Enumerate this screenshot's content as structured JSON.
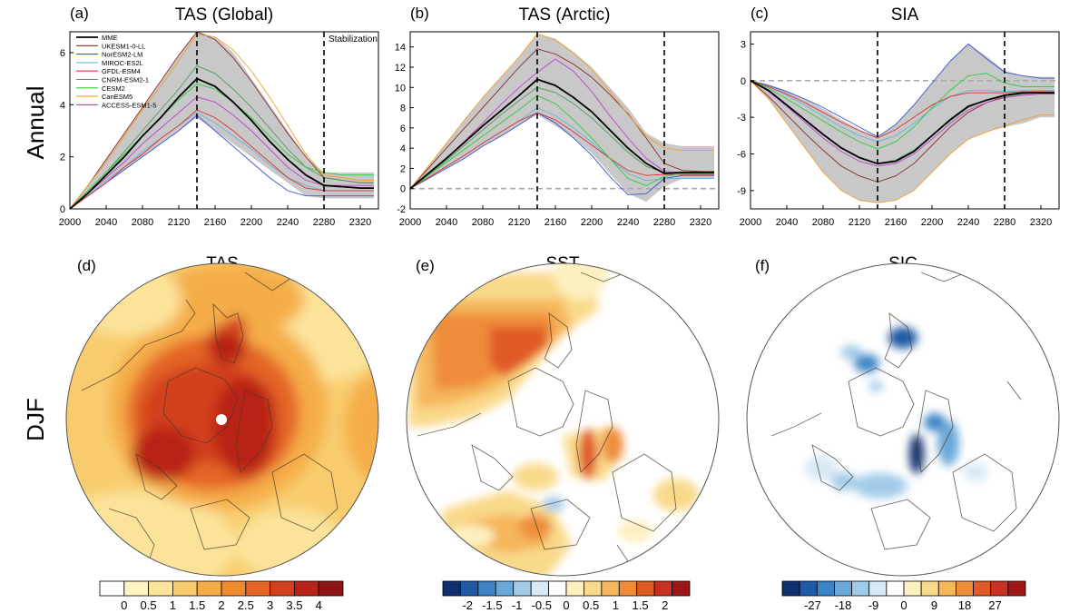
{
  "row_labels": {
    "annual": "Annual",
    "djf": "DJF"
  },
  "colors": {
    "envelope": "#c8c8c8",
    "MME": "#000000",
    "UKESM1-0-LL": "#8b2a2a",
    "NorESM2-LM": "#3a55d4",
    "MIROC-ES2L": "#6ab2d9",
    "GFDL-ESM4": "#e03030",
    "CNRM-ESM2-1": "#4a9e5a",
    "CESM2": "#2ecc3a",
    "CanESM5": "#f0a030",
    "ACCESS-ESM1-5": "#c040d0"
  },
  "chart_data": [
    {
      "type": "line",
      "tag": "(a)",
      "title": "TAS (Global)",
      "xlim": [
        2000,
        2340
      ],
      "ylim": [
        0,
        6.8
      ],
      "xticks": [
        2000,
        2040,
        2080,
        2120,
        2160,
        2200,
        2240,
        2280,
        2320
      ],
      "yticks": [
        0,
        2,
        4,
        6
      ],
      "vlines": [
        2140,
        2280
      ],
      "hline": null,
      "annotation": "Stabilization",
      "legend": [
        "MME",
        "UKESM1-0-LL",
        "NorESM2-LM",
        "MIROC-ES2L",
        "GFDL-ESM4",
        "CNRM-ESM2-1",
        "CESM2",
        "CanESM5",
        "ACCESS-ESM1-5"
      ],
      "x": [
        2000,
        2020,
        2040,
        2060,
        2080,
        2100,
        2120,
        2140,
        2160,
        2180,
        2200,
        2220,
        2240,
        2260,
        2280,
        2300,
        2320,
        2335
      ],
      "envelope_low": [
        0,
        0.5,
        1.0,
        1.5,
        2.0,
        2.5,
        3.0,
        3.5,
        3.0,
        2.5,
        2.0,
        1.5,
        1.0,
        0.5,
        0.4,
        0.4,
        0.4,
        0.4
      ],
      "envelope_high": [
        0,
        0.9,
        1.9,
        2.9,
        3.9,
        4.9,
        5.9,
        6.8,
        6.6,
        6.0,
        5.0,
        4.0,
        3.0,
        2.0,
        1.4,
        1.4,
        1.4,
        1.4
      ],
      "series": [
        {
          "name": "MME",
          "values": [
            0,
            0.6,
            1.3,
            2.0,
            2.8,
            3.5,
            4.3,
            5.0,
            4.7,
            4.1,
            3.4,
            2.6,
            1.9,
            1.3,
            0.9,
            0.85,
            0.8,
            0.8
          ]
        },
        {
          "name": "UKESM1-0-LL",
          "values": [
            0,
            0.9,
            1.9,
            2.9,
            3.9,
            4.9,
            5.9,
            6.8,
            6.5,
            5.8,
            4.9,
            3.9,
            2.9,
            2.0,
            1.2,
            1.1,
            1.0,
            1.0
          ]
        },
        {
          "name": "NorESM2-LM",
          "values": [
            0,
            0.5,
            1.0,
            1.5,
            2.0,
            2.5,
            3.0,
            3.6,
            3.0,
            2.4,
            1.8,
            1.2,
            0.7,
            0.5,
            0.5,
            0.5,
            0.5,
            0.5
          ]
        },
        {
          "name": "MIROC-ES2L",
          "values": [
            0,
            0.5,
            1.1,
            1.6,
            2.2,
            2.7,
            3.2,
            3.7,
            3.3,
            2.8,
            2.3,
            1.7,
            1.2,
            0.9,
            0.7,
            0.7,
            0.7,
            0.7
          ]
        },
        {
          "name": "GFDL-ESM4",
          "values": [
            0,
            0.5,
            1.0,
            1.6,
            2.1,
            2.7,
            3.2,
            3.8,
            3.5,
            3.0,
            2.4,
            1.8,
            1.2,
            0.8,
            0.7,
            0.7,
            0.7,
            0.7
          ]
        },
        {
          "name": "CNRM-ESM2-1",
          "values": [
            0,
            0.7,
            1.4,
            2.2,
            3.0,
            3.8,
            4.6,
            5.5,
            5.2,
            4.6,
            3.9,
            3.1,
            2.3,
            1.6,
            1.2,
            1.1,
            1.0,
            1.0
          ]
        },
        {
          "name": "CESM2",
          "values": [
            0,
            0.7,
            1.4,
            2.1,
            2.8,
            3.5,
            4.2,
            4.8,
            4.6,
            4.1,
            3.5,
            2.8,
            2.1,
            1.6,
            1.4,
            1.3,
            1.3,
            1.3
          ]
        },
        {
          "name": "CanESM5",
          "values": [
            0,
            0.9,
            1.8,
            2.8,
            3.8,
            4.7,
            5.7,
            6.7,
            6.6,
            6.1,
            5.3,
            4.3,
            3.2,
            2.1,
            1.3,
            1.2,
            1.1,
            1.1
          ]
        },
        {
          "name": "ACCESS-ESM1-5",
          "values": [
            0,
            0.6,
            1.2,
            1.8,
            2.5,
            3.1,
            3.7,
            4.3,
            4.1,
            3.6,
            3.0,
            2.3,
            1.6,
            1.1,
            0.9,
            0.9,
            0.9,
            0.9
          ]
        }
      ]
    },
    {
      "type": "line",
      "tag": "(b)",
      "title": "TAS (Arctic)",
      "xlim": [
        2000,
        2340
      ],
      "ylim": [
        -2,
        15.5
      ],
      "xticks": [
        2000,
        2040,
        2080,
        2120,
        2160,
        2200,
        2240,
        2280,
        2320
      ],
      "yticks": [
        -2,
        0,
        2,
        4,
        6,
        8,
        10,
        12,
        14
      ],
      "vlines": [
        2140,
        2280
      ],
      "hline": 0,
      "annotation": "",
      "legend": [],
      "x": [
        2000,
        2020,
        2040,
        2060,
        2080,
        2100,
        2120,
        2140,
        2160,
        2180,
        2200,
        2220,
        2240,
        2260,
        2280,
        2300,
        2320,
        2335
      ],
      "envelope_low": [
        0,
        1.0,
        2.0,
        3.0,
        4.2,
        5.2,
        6.3,
        7.3,
        6.2,
        5.0,
        3.5,
        1.5,
        -0.5,
        -1.3,
        0.2,
        1.0,
        1.0,
        1.0
      ],
      "envelope_high": [
        0,
        2.2,
        4.5,
        6.8,
        9.0,
        11.0,
        13.0,
        15.3,
        14.8,
        13.5,
        12.0,
        10.0,
        8.0,
        5.5,
        4.5,
        4.2,
        4.2,
        4.2
      ],
      "series": [
        {
          "name": "MME",
          "values": [
            0,
            1.5,
            3.0,
            4.6,
            6.2,
            7.7,
            9.2,
            10.8,
            10.2,
            9.0,
            7.6,
            5.8,
            4.0,
            2.5,
            1.5,
            1.6,
            1.6,
            1.6
          ]
        },
        {
          "name": "UKESM1-0-LL",
          "values": [
            0,
            2.0,
            4.0,
            6.0,
            8.0,
            10.0,
            12.0,
            13.8,
            13.3,
            12.3,
            11.0,
            9.3,
            7.4,
            5.0,
            2.5,
            1.8,
            1.7,
            1.7
          ]
        },
        {
          "name": "NorESM2-LM",
          "values": [
            0,
            1.0,
            2.0,
            3.0,
            4.2,
            5.2,
            6.3,
            7.5,
            6.5,
            5.0,
            3.3,
            1.2,
            -0.6,
            -0.5,
            1.0,
            1.3,
            1.3,
            1.3
          ]
        },
        {
          "name": "MIROC-ES2L",
          "values": [
            0,
            1.1,
            2.2,
            3.3,
            4.5,
            5.6,
            6.7,
            8.0,
            7.2,
            6.0,
            4.6,
            3.0,
            1.5,
            0.8,
            1.0,
            1.0,
            1.0,
            1.0
          ]
        },
        {
          "name": "GFDL-ESM4",
          "values": [
            0,
            1.1,
            2.2,
            3.3,
            4.5,
            5.6,
            6.7,
            7.5,
            6.8,
            5.6,
            4.3,
            3.0,
            1.8,
            1.3,
            1.4,
            1.4,
            1.4,
            1.4
          ]
        },
        {
          "name": "CNRM-ESM2-1",
          "values": [
            0,
            1.4,
            2.8,
            4.3,
            5.8,
            7.3,
            8.7,
            10.0,
            9.5,
            8.4,
            7.0,
            5.3,
            3.6,
            2.2,
            1.6,
            1.5,
            1.5,
            1.5
          ]
        },
        {
          "name": "CESM2",
          "values": [
            0,
            1.3,
            2.6,
            3.9,
            5.2,
            6.5,
            7.8,
            9.2,
            8.4,
            6.8,
            5.0,
            3.0,
            1.0,
            0.3,
            1.2,
            1.5,
            1.5,
            1.5
          ]
        },
        {
          "name": "CanESM5",
          "values": [
            0,
            2.2,
            4.5,
            6.8,
            9.0,
            11.0,
            13.0,
            15.3,
            14.7,
            13.4,
            11.8,
            9.6,
            7.3,
            5.2,
            4.0,
            3.8,
            3.8,
            3.8
          ]
        },
        {
          "name": "ACCESS-ESM1-5",
          "values": [
            0,
            1.5,
            3.0,
            4.7,
            6.5,
            8.3,
            10.0,
            11.5,
            12.8,
            11.6,
            9.6,
            7.2,
            5.0,
            3.0,
            1.7,
            1.6,
            1.6,
            1.6
          ]
        }
      ]
    },
    {
      "type": "line",
      "tag": "(c)",
      "title": "SIA",
      "xlim": [
        2000,
        2340
      ],
      "ylim": [
        -10.5,
        4
      ],
      "xticks": [
        2000,
        2040,
        2080,
        2120,
        2160,
        2200,
        2240,
        2280,
        2320
      ],
      "yticks": [
        -9,
        -6,
        -3,
        0,
        3
      ],
      "vlines": [
        2140,
        2280
      ],
      "hline": 0,
      "annotation": "",
      "legend": [],
      "x": [
        2000,
        2020,
        2040,
        2060,
        2080,
        2100,
        2120,
        2140,
        2160,
        2180,
        2200,
        2220,
        2240,
        2260,
        2280,
        2300,
        2320,
        2335
      ],
      "envelope_low": [
        0,
        -1.5,
        -3.5,
        -5.5,
        -7.5,
        -9.0,
        -9.8,
        -10.0,
        -9.8,
        -9.0,
        -7.5,
        -6.0,
        -4.8,
        -4.2,
        -3.8,
        -3.5,
        -3.0,
        -3.0
      ],
      "envelope_high": [
        0,
        -0.3,
        -0.8,
        -1.5,
        -2.3,
        -3.2,
        -4.0,
        -4.6,
        -3.6,
        -2.0,
        -0.2,
        1.6,
        3.0,
        2.0,
        0.8,
        0.4,
        0.3,
        0.3
      ],
      "series": [
        {
          "name": "MME",
          "values": [
            0,
            -0.8,
            -2.0,
            -3.2,
            -4.4,
            -5.5,
            -6.3,
            -6.8,
            -6.6,
            -5.8,
            -4.5,
            -3.2,
            -2.1,
            -1.6,
            -1.2,
            -1.0,
            -1.0,
            -1.0
          ]
        },
        {
          "name": "UKESM1-0-LL",
          "values": [
            0,
            -1.3,
            -2.8,
            -4.3,
            -5.7,
            -7.0,
            -7.8,
            -8.3,
            -7.8,
            -6.8,
            -5.3,
            -3.8,
            -2.6,
            -1.8,
            -1.3,
            -1.1,
            -1.0,
            -1.0
          ]
        },
        {
          "name": "NorESM2-LM",
          "values": [
            0,
            -0.4,
            -0.9,
            -1.5,
            -2.2,
            -3.0,
            -3.8,
            -4.6,
            -3.6,
            -2.0,
            -0.2,
            1.6,
            3.0,
            1.8,
            0.7,
            0.4,
            0.2,
            0.2
          ]
        },
        {
          "name": "MIROC-ES2L",
          "values": [
            0,
            -0.5,
            -1.2,
            -2.0,
            -2.9,
            -3.8,
            -4.5,
            -5.0,
            -4.5,
            -3.5,
            -2.3,
            -1.3,
            -0.8,
            -0.8,
            -0.9,
            -0.8,
            -0.8,
            -0.8
          ]
        },
        {
          "name": "GFDL-ESM4",
          "values": [
            0,
            -0.5,
            -1.1,
            -1.8,
            -2.6,
            -3.4,
            -4.1,
            -4.7,
            -4.0,
            -3.0,
            -2.0,
            -1.3,
            -1.0,
            -1.0,
            -1.0,
            -0.9,
            -0.9,
            -0.9
          ]
        },
        {
          "name": "CNRM-ESM2-1",
          "values": [
            0,
            -0.9,
            -2.0,
            -3.2,
            -4.4,
            -5.5,
            -6.3,
            -6.8,
            -6.5,
            -5.7,
            -4.5,
            -3.3,
            -2.2,
            -1.6,
            -1.3,
            -1.1,
            -1.0,
            -1.0
          ]
        },
        {
          "name": "CESM2",
          "values": [
            0,
            -0.6,
            -1.5,
            -2.4,
            -3.3,
            -4.2,
            -5.0,
            -5.6,
            -5.0,
            -3.8,
            -2.2,
            -0.8,
            0.4,
            0.6,
            -0.2,
            -0.5,
            -0.5,
            -0.5
          ]
        },
        {
          "name": "CanESM5",
          "values": [
            0,
            -1.5,
            -3.5,
            -5.5,
            -7.5,
            -9.0,
            -9.8,
            -10.0,
            -9.8,
            -9.0,
            -7.5,
            -6.0,
            -4.8,
            -4.2,
            -3.7,
            -3.2,
            -2.8,
            -2.8
          ]
        },
        {
          "name": "ACCESS-ESM1-5",
          "values": [
            0,
            -0.9,
            -2.1,
            -3.4,
            -4.7,
            -5.8,
            -6.6,
            -7.0,
            -6.8,
            -6.0,
            -4.8,
            -3.5,
            -2.4,
            -1.8,
            -1.4,
            -1.2,
            -1.1,
            -1.1
          ]
        }
      ]
    },
    {
      "type": "heatmap",
      "tag": "(d)",
      "title": "TAS",
      "projection": "north-polar-stereographic",
      "colorbar": {
        "ticks": [
          "0",
          "0.5",
          "1",
          "1.5",
          "2",
          "2.5",
          "3",
          "3.5",
          "4"
        ],
        "colors": [
          "#ffffff",
          "#fdf3c0",
          "#fbe39a",
          "#f8cc6e",
          "#f5ad48",
          "#f08a30",
          "#e46525",
          "#d2401c",
          "#b92318",
          "#8e1414"
        ]
      },
      "pattern": "widespread warming, strongest over the central Arctic, Barents-Kara Sea and Hudson Bay",
      "marker": "pole"
    },
    {
      "type": "heatmap",
      "tag": "(e)",
      "title": "SST",
      "projection": "north-polar-stereographic",
      "colorbar": {
        "ticks": [
          "-2",
          "-1.5",
          "-1",
          "-0.5",
          "0",
          "0.5",
          "1",
          "1.5",
          "2"
        ],
        "colors": [
          "#0d2f6e",
          "#1f5aa6",
          "#3d84c5",
          "#6ba8d8",
          "#a2cbe8",
          "#d7e9f5",
          "#ffffff",
          "#fdf0c0",
          "#f9d98a",
          "#f5b65c",
          "#ef8c3a",
          "#e05a25",
          "#c83020",
          "#9c1818"
        ]
      },
      "pattern": "strong warming over the North Pacific and Sea of Okhotsk, moderate warming in the North Atlantic and Barents Sea"
    },
    {
      "type": "heatmap",
      "tag": "(f)",
      "title": "SIC",
      "projection": "north-polar-stereographic",
      "colorbar": {
        "ticks": [
          "-27",
          "-18",
          "-9",
          "0",
          "9",
          "18",
          "27"
        ],
        "colors": [
          "#0d2f6e",
          "#1f5aa6",
          "#3d84c5",
          "#6ba8d8",
          "#a2cbe8",
          "#d7e9f5",
          "#ffffff",
          "#fdf0c0",
          "#f9d98a",
          "#f5b65c",
          "#ef8c3a",
          "#e05a25",
          "#c83020",
          "#9c1818"
        ]
      },
      "pattern": "sea-ice concentration decreases in the Barents-Kara Sea, Sea of Okhotsk, Hudson Bay and Labrador Sea"
    }
  ]
}
